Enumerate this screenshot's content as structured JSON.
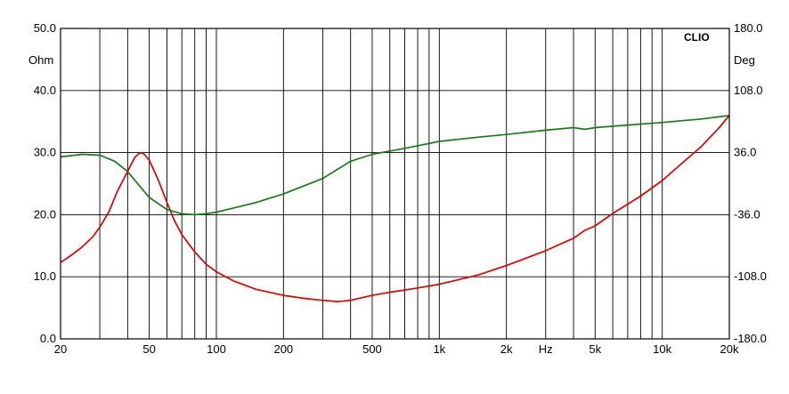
{
  "chart_data": {
    "type": "line",
    "brand": "CLIO",
    "x_scale": "log",
    "xlim": [
      20,
      20000
    ],
    "y_left": {
      "unit_label": "Ohm",
      "lim": [
        0,
        50
      ],
      "ticks": [
        "0.0",
        "10.0",
        "20.0",
        "30.0",
        "40.0",
        "50.0"
      ]
    },
    "y_right": {
      "unit_label": "Deg",
      "lim": [
        -180,
        180
      ],
      "ticks": [
        "-180.0",
        "-108.0",
        "-36.0",
        "36.0",
        "108.0",
        "180.0"
      ]
    },
    "x_tick_labels": [
      {
        "value": 20,
        "label": "20"
      },
      {
        "value": 50,
        "label": "50"
      },
      {
        "value": 100,
        "label": "100"
      },
      {
        "value": 200,
        "label": "200"
      },
      {
        "value": 500,
        "label": "500"
      },
      {
        "value": 1000,
        "label": "1k"
      },
      {
        "value": 2000,
        "label": "2k"
      },
      {
        "value": 3000,
        "label": "Hz"
      },
      {
        "value": 5000,
        "label": "5k"
      },
      {
        "value": 10000,
        "label": "10k"
      },
      {
        "value": 20000,
        "label": "20k"
      }
    ],
    "grid": true,
    "series": [
      {
        "axis": "left",
        "color": "#dd0000",
        "x": [
          20,
          22,
          25,
          28,
          30,
          33,
          36,
          40,
          43,
          45,
          47,
          50,
          55,
          60,
          65,
          70,
          80,
          90,
          100,
          120,
          150,
          200,
          250,
          300,
          350,
          400,
          500,
          600,
          800,
          1000,
          1500,
          2000,
          3000,
          4000,
          4500,
          5000,
          6000,
          8000,
          10000,
          12000,
          15000,
          18000,
          20000
        ],
        "values": [
          12.3,
          13.3,
          14.8,
          16.5,
          18.0,
          20.5,
          23.8,
          27.0,
          29.2,
          29.9,
          29.9,
          28.8,
          25.5,
          22.0,
          19.0,
          16.8,
          14.0,
          12.0,
          10.8,
          9.3,
          8.0,
          7.0,
          6.5,
          6.2,
          6.0,
          6.2,
          7.0,
          7.5,
          8.2,
          8.8,
          10.3,
          11.8,
          14.2,
          16.2,
          17.5,
          18.2,
          20.2,
          23.0,
          25.5,
          28.0,
          31.0,
          34.0,
          36.0
        ]
      },
      {
        "axis": "right",
        "color": "#1a7a1a",
        "x": [
          20,
          25,
          30,
          35,
          40,
          45,
          50,
          60,
          70,
          80,
          90,
          100,
          150,
          200,
          300,
          400,
          500,
          700,
          1000,
          1500,
          2000,
          3000,
          4000,
          4500,
          5000,
          7000,
          10000,
          15000,
          20000
        ],
        "values": [
          31,
          34,
          33,
          26,
          14,
          -2,
          -16,
          -30,
          -35,
          -36,
          -35,
          -33,
          -22,
          -12,
          6,
          26,
          34,
          41,
          49,
          54,
          57,
          62,
          65,
          63,
          65,
          68,
          71,
          75,
          79
        ]
      }
    ]
  }
}
